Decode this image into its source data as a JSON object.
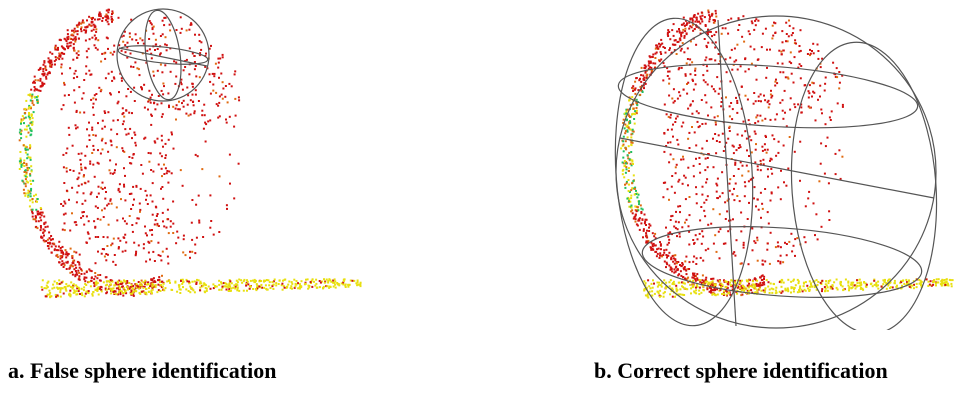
{
  "figure": {
    "panels": [
      {
        "id": "a",
        "caption": "a. False sphere identification",
        "description_kind": "point-cloud-with-small-wireframe-sphere"
      },
      {
        "id": "b",
        "caption": "b. Correct sphere identification",
        "description_kind": "point-cloud-with-large-wireframe-sphere"
      }
    ],
    "colors": {
      "point_high": "#d01010",
      "point_mid": "#e06a10",
      "point_low": "#e8e010",
      "point_accent": "#20c060",
      "wireframe": "#555555",
      "background": "#ffffff"
    }
  }
}
